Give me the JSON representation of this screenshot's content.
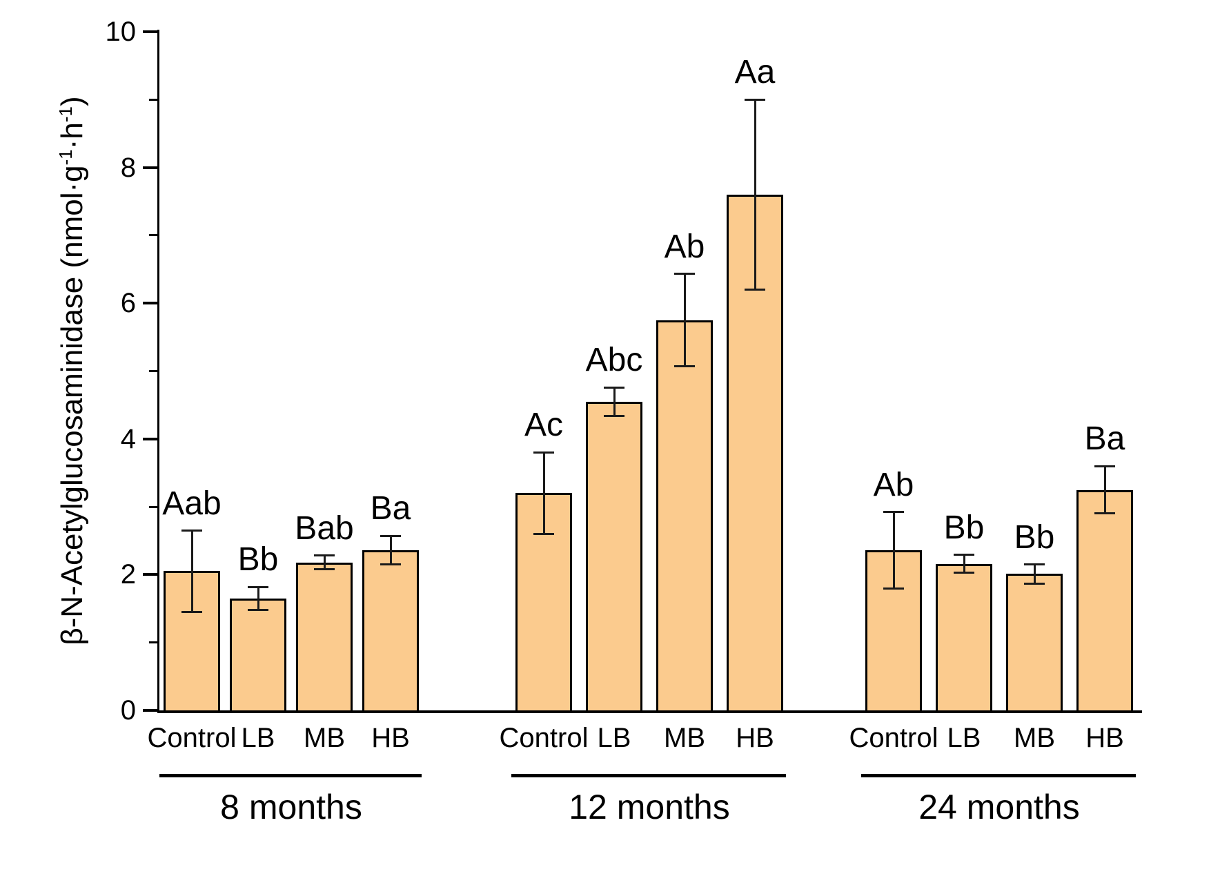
{
  "chart_data": {
    "type": "bar",
    "title": "",
    "xlabel": "",
    "ylabel": "β-N-Acetylglucosaminidase (nmol·g⁻¹·h⁻¹)",
    "ylabel_parts": [
      {
        "text": "β-N-Acetylglucosaminidase (nmol·g"
      },
      {
        "text": "-1",
        "sup": true
      },
      {
        "text": "·h"
      },
      {
        "text": "-1",
        "sup": true
      },
      {
        "text": ")"
      }
    ],
    "ylim": [
      0,
      10
    ],
    "yticks_major": [
      0,
      2,
      4,
      6,
      8,
      10
    ],
    "yticks_minor": [
      1,
      3,
      5,
      7,
      9
    ],
    "grid": false,
    "legend": "none",
    "bar_fill_color": "#FBCB8E",
    "bar_edge_color": "#000000",
    "error_bar_color": "#1a1a1a",
    "categories": [
      "Control",
      "LB",
      "MB",
      "HB"
    ],
    "groups": [
      {
        "label": "8 months",
        "bars": [
          {
            "category": "Control",
            "value": 2.05,
            "error": 0.6,
            "letter": "Aab"
          },
          {
            "category": "LB",
            "value": 1.65,
            "error": 0.17,
            "letter": "Bb"
          },
          {
            "category": "MB",
            "value": 2.18,
            "error": 0.1,
            "letter": "Bab"
          },
          {
            "category": "HB",
            "value": 2.36,
            "error": 0.21,
            "letter": "Ba"
          }
        ]
      },
      {
        "label": "12 months",
        "bars": [
          {
            "category": "Control",
            "value": 3.2,
            "error": 0.6,
            "letter": "Ac"
          },
          {
            "category": "LB",
            "value": 4.55,
            "error": 0.21,
            "letter": "Abc"
          },
          {
            "category": "MB",
            "value": 5.75,
            "error": 0.68,
            "letter": "Ab"
          },
          {
            "category": "HB",
            "value": 7.6,
            "error": 1.4,
            "letter": "Aa"
          }
        ]
      },
      {
        "label": "24 months",
        "bars": [
          {
            "category": "Control",
            "value": 2.36,
            "error": 0.56,
            "letter": "Ab"
          },
          {
            "category": "LB",
            "value": 2.16,
            "error": 0.13,
            "letter": "Bb"
          },
          {
            "category": "MB",
            "value": 2.01,
            "error": 0.14,
            "letter": "Bb"
          },
          {
            "category": "HB",
            "value": 3.25,
            "error": 0.35,
            "letter": "Ba"
          }
        ]
      }
    ]
  }
}
